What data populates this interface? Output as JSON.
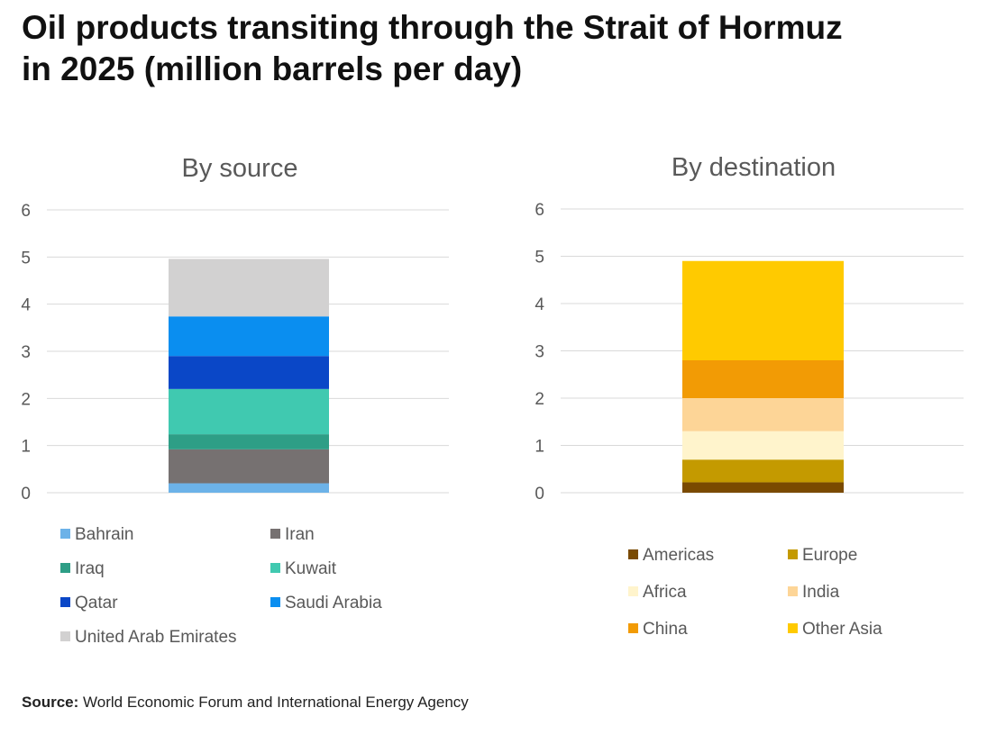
{
  "title_lines": [
    "Oil products transiting through the Strait of Hormuz",
    "in 2025 (million barrels per day)"
  ],
  "source": {
    "label": "Source:",
    "text": "World Economic Forum and International Energy Agency"
  },
  "chart_data": [
    {
      "type": "bar",
      "stacked": true,
      "title": "By source",
      "ylim": [
        0,
        6
      ],
      "yticks": [
        0,
        1,
        2,
        3,
        4,
        5,
        6
      ],
      "grid": true,
      "legend_position": "bottom",
      "series": [
        {
          "name": "Bahrain",
          "value": 0.2,
          "color": "#6cb2e8"
        },
        {
          "name": "Iran",
          "value": 0.72,
          "color": "#767171"
        },
        {
          "name": "Iraq",
          "value": 0.32,
          "color": "#2e9e86"
        },
        {
          "name": "Kuwait",
          "value": 0.96,
          "color": "#40c9b0"
        },
        {
          "name": "Qatar",
          "value": 0.7,
          "color": "#0a47c7"
        },
        {
          "name": "Saudi Arabia",
          "value": 0.84,
          "color": "#0a8ef0"
        },
        {
          "name": "United Arab Emirates",
          "value": 1.22,
          "color": "#d2d1d1"
        }
      ]
    },
    {
      "type": "bar",
      "stacked": true,
      "title": "By destination",
      "ylim": [
        0,
        6
      ],
      "yticks": [
        0,
        1,
        2,
        3,
        4,
        5,
        6
      ],
      "grid": true,
      "legend_position": "bottom",
      "series": [
        {
          "name": "Americas",
          "value": 0.22,
          "color": "#7a4a00"
        },
        {
          "name": "Europe",
          "value": 0.48,
          "color": "#c49a00"
        },
        {
          "name": "Africa",
          "value": 0.6,
          "color": "#fff4cc"
        },
        {
          "name": "India",
          "value": 0.7,
          "color": "#fdd597"
        },
        {
          "name": "China",
          "value": 0.8,
          "color": "#f29b05"
        },
        {
          "name": "Other Asia",
          "value": 2.1,
          "color": "#ffca00"
        }
      ]
    }
  ]
}
